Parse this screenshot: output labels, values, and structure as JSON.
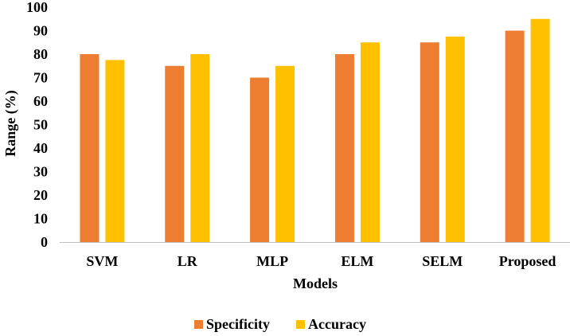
{
  "chart_data": {
    "type": "bar",
    "categories": [
      "SVM",
      "LR",
      "MLP",
      "ELM",
      "SELM",
      "Proposed"
    ],
    "series": [
      {
        "name": "Specificity",
        "color": "#ED7D31",
        "values": [
          80,
          75,
          70,
          80,
          85,
          90
        ]
      },
      {
        "name": "Accuracy",
        "color": "#FFC000",
        "values": [
          77.5,
          80,
          75,
          85,
          87.5,
          95
        ]
      }
    ],
    "xlabel": "Models",
    "ylabel": "Range (%)",
    "ylim": [
      0,
      100
    ],
    "yticks": [
      0,
      10,
      20,
      30,
      40,
      50,
      60,
      70,
      80,
      90,
      100
    ],
    "grid": false,
    "legend_position": "bottom"
  }
}
